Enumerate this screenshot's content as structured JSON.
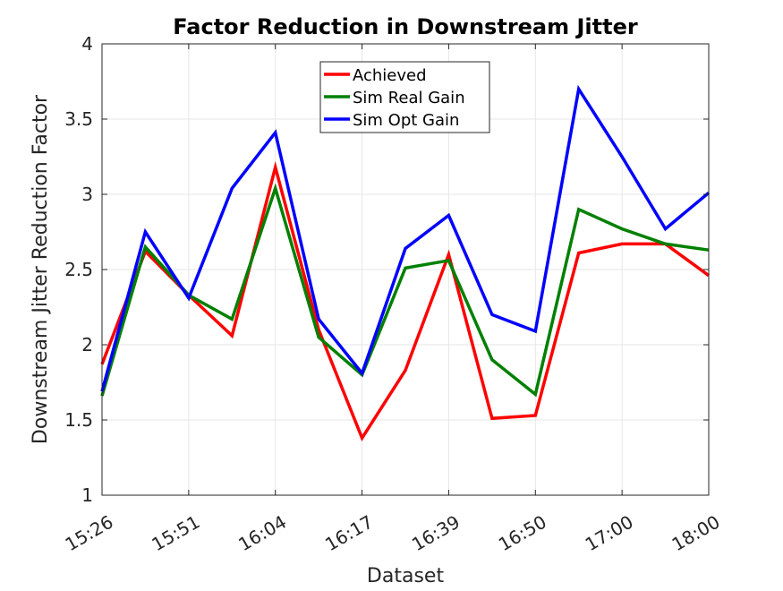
{
  "chart_data": {
    "type": "line",
    "title": "Factor Reduction in Downstream Jitter",
    "xlabel": "Dataset",
    "ylabel": "Downstream Jitter Reduction Factor",
    "ylim": [
      1,
      4
    ],
    "yticks": [
      "1",
      "1.5",
      "2",
      "2.5",
      "3",
      "3.5",
      "4"
    ],
    "x": [
      1,
      2,
      3,
      4,
      5,
      6,
      7,
      8,
      9,
      10,
      11,
      12,
      13,
      14,
      15
    ],
    "xlim": [
      1,
      15
    ],
    "xticks": [
      {
        "x": 1,
        "label": "15:26"
      },
      {
        "x": 3,
        "label": "15:51"
      },
      {
        "x": 5,
        "label": "16:04"
      },
      {
        "x": 7,
        "label": "16:17"
      },
      {
        "x": 9,
        "label": "16:39"
      },
      {
        "x": 11,
        "label": "16:50"
      },
      {
        "x": 13,
        "label": "17:00"
      },
      {
        "x": 15,
        "label": "18:00"
      }
    ],
    "grid": true,
    "legend_position": "top-center",
    "series": [
      {
        "name": "Achieved",
        "color": "#ff0000",
        "values": [
          1.87,
          2.62,
          2.33,
          2.06,
          3.18,
          2.1,
          1.38,
          1.83,
          2.6,
          1.51,
          1.53,
          2.61,
          2.67,
          2.67,
          2.46
        ]
      },
      {
        "name": "Sim Real Gain",
        "color": "#008000",
        "values": [
          1.66,
          2.65,
          2.33,
          2.17,
          3.04,
          2.05,
          1.8,
          2.51,
          2.56,
          1.9,
          1.67,
          2.9,
          2.77,
          2.67,
          2.63
        ]
      },
      {
        "name": "Sim Opt Gain",
        "color": "#0000ff",
        "values": [
          1.69,
          2.75,
          2.31,
          3.04,
          3.41,
          2.17,
          1.81,
          2.64,
          2.86,
          2.2,
          2.09,
          3.7,
          3.25,
          2.77,
          3.01
        ]
      }
    ]
  }
}
